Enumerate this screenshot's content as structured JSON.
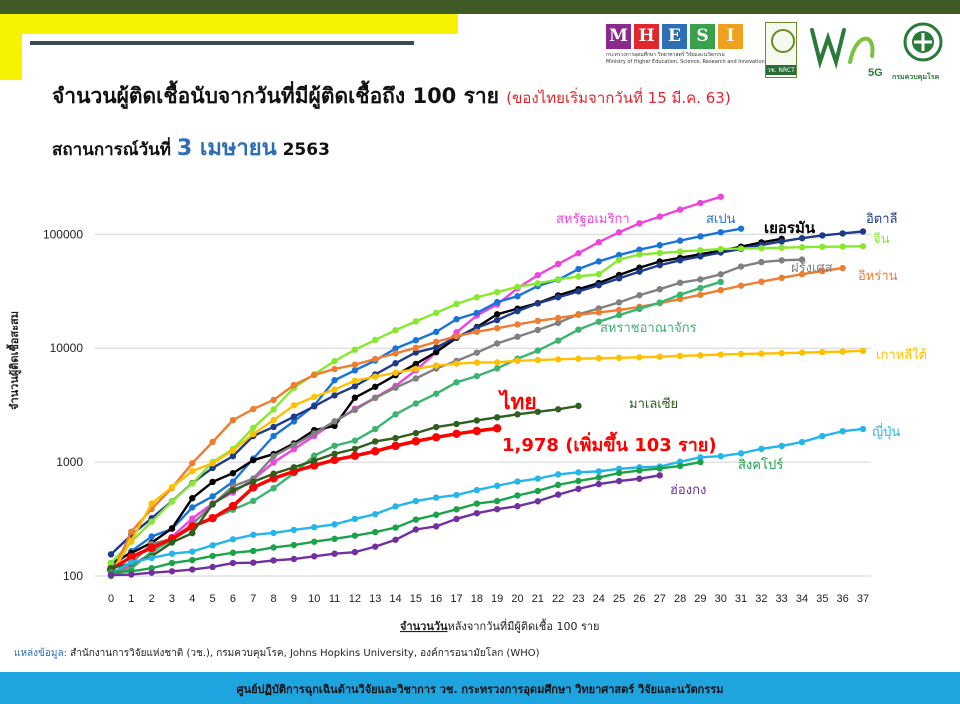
{
  "header": {
    "title": "จำนวนผู้ติดเชื้อนับจากวันที่มีผู้ติดเชื้อถึง 100 ราย",
    "title_note": "(ของไทยเริ่มจากวันที่ 15 มี.ค. 63)",
    "subtitle_prefix": "สถานการณ์วันที่",
    "subtitle_date": "3 เมษายน",
    "subtitle_year": "2563"
  },
  "logos": {
    "mhesi_letters": [
      "M",
      "H",
      "E",
      "S",
      "I"
    ],
    "mhesi_colors": [
      "#8b2a8c",
      "#e1262d",
      "#2e6eb4",
      "#3aa04a",
      "#f0a020"
    ],
    "mhesi_caption_th": "กระทรวงการอุดมศึกษา วิทยาศาสตร์ วิจัยและนวัตกรรม",
    "mhesi_caption_en": "Ministry of Higher Education, Science, Research and Innovation",
    "nrct_label": "วช. NRCT",
    "wch_label": "วช",
    "wch_5g": "5G",
    "ddc_label": "กรมควบคุมโรค"
  },
  "source": {
    "label": "แหล่งข้อมูล:",
    "text": " สำนักงานการวิจัยแห่งชาติ (วช.), กรมควบคุมโรค, Johns Hopkins University, องค์การอนามัยโลก (WHO)"
  },
  "footer": {
    "text": "ศูนย์ปฏิบัติการฉุกเฉินด้านวิจัยและวิชาการ   วช.   กระทรวงการอุดมศึกษา วิทยาศาสตร์ วิจัยและนวัตกรรม"
  },
  "chart_data": {
    "type": "line",
    "title": "จำนวนผู้ติดเชื้อนับจากวันที่มีผู้ติดเชื้อถึง 100 ราย",
    "xlabel_underlined": "จำนวนวัน",
    "xlabel_rest": "หลังจากวันที่มีผู้ติดเชื้อ 100 ราย",
    "ylabel": "จำนวนผู้ติดเชื้อสะสม",
    "yscale": "log",
    "ylim": [
      100,
      200000
    ],
    "yticks": [
      "100",
      "1000",
      "10000",
      "100000"
    ],
    "xlim": [
      0,
      37
    ],
    "xticks": [
      0,
      1,
      2,
      3,
      4,
      5,
      6,
      7,
      8,
      9,
      10,
      11,
      12,
      13,
      14,
      15,
      16,
      17,
      18,
      19,
      20,
      21,
      22,
      23,
      24,
      25,
      26,
      27,
      28,
      29,
      30,
      31,
      32,
      33,
      34,
      35,
      36,
      37
    ],
    "grid": "horizontal",
    "series": [
      {
        "name": "สหรัฐอเมริกา",
        "color": "#ee44dd",
        "values": [
          100,
          124,
          158,
          221,
          319,
          435,
          541,
          704,
          994,
          1301,
          1697,
          2247,
          2943,
          3680,
          4663,
          6411,
          9197,
          13779,
          19367,
          24192,
          33592,
          43781,
          54856,
          68211,
          85228,
          104126,
          124686,
          143025,
          164620,
          188172,
          213372
        ]
      },
      {
        "name": "สเปน",
        "color": "#1a73d9",
        "values": [
          120,
          165,
          222,
          259,
          400,
          500,
          673,
          1073,
          1695,
          2277,
          3146,
          5232,
          6391,
          7798,
          9942,
          11748,
          13910,
          17963,
          20410,
          25374,
          28603,
          35136,
          39885,
          49515,
          57786,
          65719,
          73235,
          80110,
          87956,
          95923,
          104118,
          112065
        ]
      },
      {
        "name": "เยอรมัน",
        "color": "#000000",
        "values": [
          130,
          159,
          196,
          262,
          482,
          670,
          799,
          1040,
          1176,
          1457,
          1908,
          2078,
          3675,
          4585,
          5795,
          7272,
          9257,
          12327,
          15320,
          19848,
          22213,
          24873,
          29056,
          32986,
          37323,
          43938,
          50871,
          57695,
          62095,
          66885,
          71808,
          77872,
          84794,
          91159
        ]
      },
      {
        "name": "อิตาลี",
        "color": "#1e3a8a",
        "values": [
          155,
          229,
          322,
          453,
          655,
          888,
          1128,
          1694,
          2036,
          2502,
          3089,
          3858,
          4636,
          5883,
          7375,
          9172,
          10149,
          12462,
          15113,
          17660,
          21157,
          24747,
          27980,
          31506,
          35713,
          41035,
          47021,
          53578,
          59138,
          63927,
          69176,
          74386,
          80589,
          86498,
          92472,
          97689,
          101739,
          105792
        ]
      },
      {
        "name": "จีน",
        "color": "#88e830",
        "values": [
          130,
          200,
          300,
          450,
          650,
          1000,
          1300,
          2000,
          2900,
          4500,
          5900,
          7700,
          9700,
          11800,
          14400,
          17200,
          20400,
          24500,
          28000,
          31100,
          34500,
          37100,
          40200,
          42600,
          44600,
          59800,
          66400,
          68500,
          70500,
          72400,
          74200,
          75000,
          75600,
          76200,
          77000,
          77700,
          78000,
          78500
        ]
      },
      {
        "name": "ฝรั่งเศส",
        "color": "#808080",
        "values": [
          100,
          130,
          191,
          212,
          285,
          423,
          613,
          716,
          1126,
          1412,
          1784,
          2281,
          2876,
          3661,
          4499,
          5423,
          6633,
          7730,
          9134,
          10995,
          12612,
          14459,
          16689,
          19856,
          22304,
          25233,
          29155,
          32964,
          37575,
          40174,
          44550,
          52128,
          56989,
          59105,
          59929
        ]
      },
      {
        "name": "อิหร่าน",
        "color": "#ed7d31",
        "values": [
          100,
          245,
          388,
          593,
          978,
          1501,
          2336,
          2922,
          3513,
          4747,
          5823,
          6566,
          7161,
          8042,
          9000,
          10075,
          11364,
          12729,
          13938,
          14991,
          16169,
          17361,
          18407,
          19644,
          20610,
          21638,
          23049,
          24811,
          27017,
          29406,
          32332,
          35408,
          38309,
          41495,
          44605,
          47593,
          50468
        ]
      },
      {
        "name": "สหราชอาณาจักร",
        "color": "#3cb371",
        "values": [
          100,
          116,
          164,
          207,
          273,
          321,
          382,
          456,
          590,
          798,
          1140,
          1391,
          1543,
          1950,
          2626,
          3269,
          3983,
          5018,
          5683,
          6650,
          8077,
          9529,
          11658,
          14543,
          17089,
          19522,
          22141,
          25150,
          29474,
          33718,
          38168
        ]
      },
      {
        "name": "เกาหลีใต้",
        "color": "#ffc000",
        "values": [
          104,
          204,
          433,
          602,
          833,
          977,
          1261,
          1766,
          2337,
          3150,
          3736,
          4335,
          5186,
          5621,
          6088,
          6593,
          7041,
          7313,
          7478,
          7513,
          7755,
          7869,
          7979,
          8086,
          8162,
          8236,
          8320,
          8413,
          8565,
          8652,
          8799,
          8897,
          8961,
          9037,
          9137,
          9241,
          9332,
          9478
        ]
      },
      {
        "name": "ไทย",
        "color": "#ff0000",
        "values": [
          114,
          147,
          177,
          212,
          272,
          322,
          411,
          599,
          721,
          827,
          934,
          1045,
          1136,
          1245,
          1388,
          1524,
          1651,
          1771,
          1875,
          1978
        ]
      },
      {
        "name": "มาเลเซีย",
        "color": "#2f5f1f",
        "values": [
          117,
          129,
          149,
          197,
          238,
          428,
          566,
          673,
          790,
          900,
          1030,
          1183,
          1306,
          1518,
          1624,
          1796,
          2031,
          2161,
          2320,
          2470,
          2626,
          2766,
          2908,
          3116
        ]
      },
      {
        "name": "ญี่ปุ่น",
        "color": "#26b5e8",
        "values": [
          105,
          132,
          144,
          157,
          164,
          186,
          210,
          230,
          239,
          254,
          268,
          284,
          317,
          349,
          408,
          455,
          488,
          514,
          568,
          620,
          675,
          716,
          780,
          814,
          829,
          873,
          900,
          913,
          1007,
          1101,
          1128,
          1193,
          1307,
          1387,
          1499,
          1693,
          1866,
          1953
        ]
      },
      {
        "name": "สิงคโปร์",
        "color": "#1ca34a",
        "values": [
          108,
          110,
          117,
          130,
          138,
          150,
          160,
          166,
          178,
          187,
          200,
          212,
          226,
          243,
          266,
          313,
          345,
          385,
          432,
          455,
          509,
          558,
          631,
          683,
          732,
          802,
          844,
          879,
          926,
          1000
        ]
      },
      {
        "name": "ฮ่องกง",
        "color": "#7030a0",
        "values": [
          102,
          103,
          107,
          110,
          114,
          120,
          130,
          131,
          137,
          141,
          149,
          157,
          162,
          181,
          208,
          256,
          273,
          317,
          356,
          386,
          410,
          453,
          518,
          582,
          641,
          682,
          714,
          765
        ]
      }
    ],
    "annotations": [
      {
        "text": "ไทย",
        "color": "#ff0000"
      },
      {
        "text": "1,978 (เพิ่มขึ้น 103 ราย)",
        "color": "#ff0000"
      }
    ]
  }
}
